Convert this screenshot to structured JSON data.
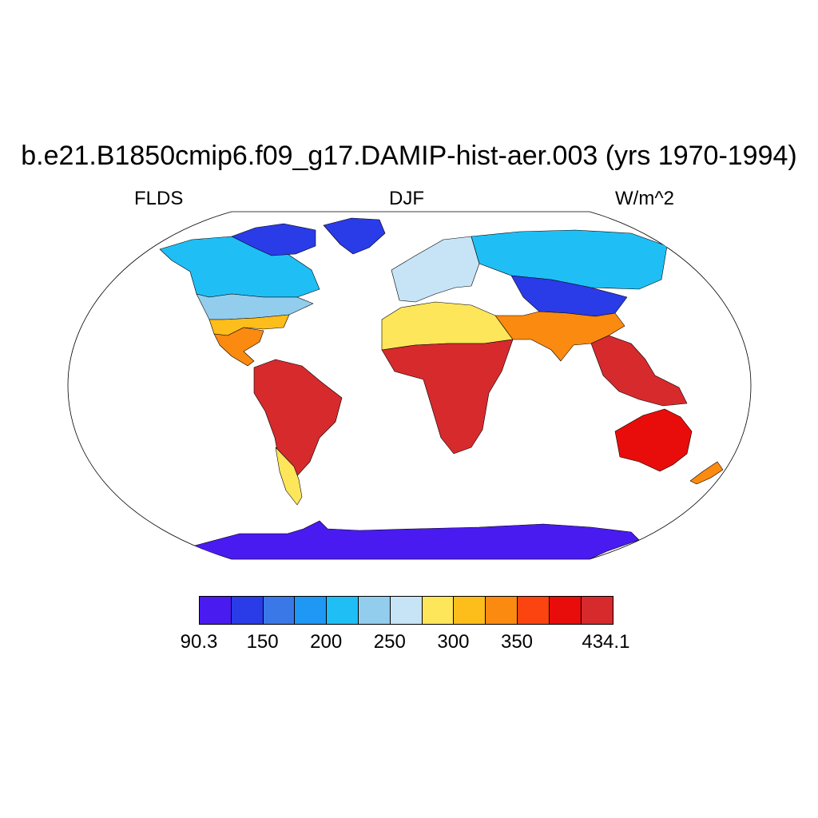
{
  "title": "b.e21.B1850cmip6.f09_g17.DAMIP-hist-aer.003 (yrs 1970-1994)",
  "subtitle_left": "FLDS",
  "subtitle_center": "DJF",
  "subtitle_right": "W/m^2",
  "colorbar": {
    "colors": [
      "#4a1bf0",
      "#2a3be8",
      "#3a78e8",
      "#1f97f5",
      "#1fbff5",
      "#93cdee",
      "#c6e4f6",
      "#fee65a",
      "#fdbd1a",
      "#fb8a10",
      "#fc4410",
      "#e80d0b",
      "#d62a2d"
    ],
    "labels": [
      {
        "text": "90.3",
        "edge": 0
      },
      {
        "text": "150",
        "edge": 1
      },
      {
        "text": "200",
        "edge": 2
      },
      {
        "text": "250",
        "edge": 3
      },
      {
        "text": "300",
        "edge": 4
      },
      {
        "text": "350",
        "edge": 5
      },
      {
        "text": "434.1",
        "edge": 7
      }
    ]
  },
  "regions": [
    {
      "name": "greenland",
      "color": "#2a3be8"
    },
    {
      "name": "canadian-arctic",
      "color": "#2a3be8"
    },
    {
      "name": "north-america-north",
      "color": "#1fbff5"
    },
    {
      "name": "north-america-central",
      "color": "#93cdee"
    },
    {
      "name": "north-america-south",
      "color": "#fdbd1a"
    },
    {
      "name": "central-america",
      "color": "#fb8a10"
    },
    {
      "name": "south-america",
      "color": "#d62a2d"
    },
    {
      "name": "patagonia",
      "color": "#fee65a"
    },
    {
      "name": "europe",
      "color": "#c6e4f6"
    },
    {
      "name": "north-africa",
      "color": "#fee65a"
    },
    {
      "name": "africa-central",
      "color": "#d62a2d"
    },
    {
      "name": "siberia",
      "color": "#1fbff5"
    },
    {
      "name": "central-asia",
      "color": "#2a3be8"
    },
    {
      "name": "south-asia",
      "color": "#fb8a10"
    },
    {
      "name": "southeast-asia",
      "color": "#d62a2d"
    },
    {
      "name": "australia",
      "color": "#e80d0b"
    },
    {
      "name": "new-zealand",
      "color": "#fb8a10"
    },
    {
      "name": "antarctica",
      "color": "#4a1bf0"
    }
  ]
}
